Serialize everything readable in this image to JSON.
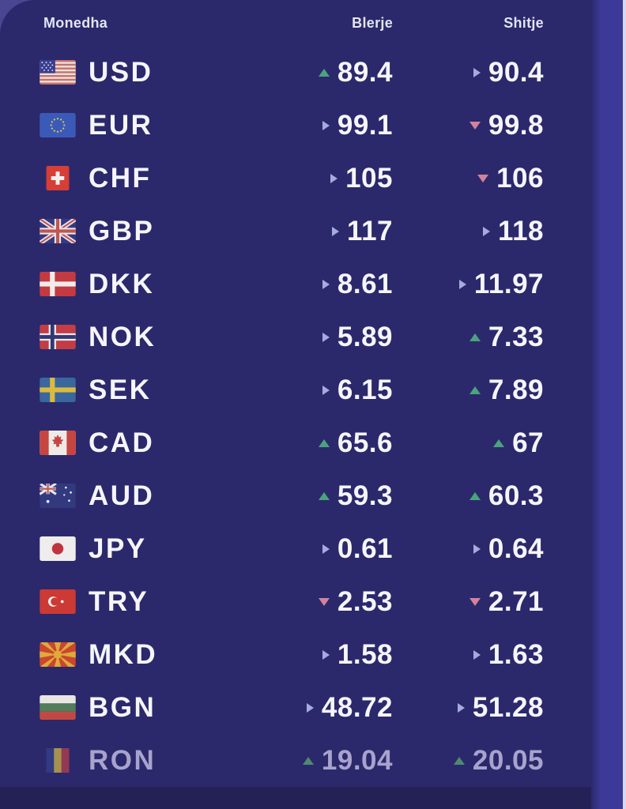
{
  "colors": {
    "background": "#2b296b",
    "panel_bottom": "#232156",
    "side_strip": "#3c3998",
    "side_sliver": "#d9d7ec",
    "corner_glow": "#4a4692",
    "header_text": "#e4e4f4",
    "value_text": "#f5f5fb",
    "muted_text": "#a7a3cd",
    "trend_up": "#4aa37d",
    "trend_down": "#d2839b",
    "trend_flat": "#a6abdf"
  },
  "table": {
    "headers": {
      "currency": "Monedha",
      "buy": "Blerje",
      "sell": "Shitje"
    },
    "rows": [
      {
        "code": "USD",
        "flag": "us",
        "buy": {
          "value": "89.4",
          "trend": "up"
        },
        "sell": {
          "value": "90.4",
          "trend": "flat"
        }
      },
      {
        "code": "EUR",
        "flag": "eu",
        "buy": {
          "value": "99.1",
          "trend": "flat"
        },
        "sell": {
          "value": "99.8",
          "trend": "down"
        }
      },
      {
        "code": "CHF",
        "flag": "ch",
        "buy": {
          "value": "105",
          "trend": "flat"
        },
        "sell": {
          "value": "106",
          "trend": "down"
        }
      },
      {
        "code": "GBP",
        "flag": "gb",
        "buy": {
          "value": "117",
          "trend": "flat"
        },
        "sell": {
          "value": "118",
          "trend": "flat"
        }
      },
      {
        "code": "DKK",
        "flag": "dk",
        "buy": {
          "value": "8.61",
          "trend": "flat"
        },
        "sell": {
          "value": "11.97",
          "trend": "flat"
        }
      },
      {
        "code": "NOK",
        "flag": "no",
        "buy": {
          "value": "5.89",
          "trend": "flat"
        },
        "sell": {
          "value": "7.33",
          "trend": "up"
        }
      },
      {
        "code": "SEK",
        "flag": "se",
        "buy": {
          "value": "6.15",
          "trend": "flat"
        },
        "sell": {
          "value": "7.89",
          "trend": "up"
        }
      },
      {
        "code": "CAD",
        "flag": "ca",
        "buy": {
          "value": "65.6",
          "trend": "up"
        },
        "sell": {
          "value": "67",
          "trend": "up"
        }
      },
      {
        "code": "AUD",
        "flag": "au",
        "buy": {
          "value": "59.3",
          "trend": "up"
        },
        "sell": {
          "value": "60.3",
          "trend": "up"
        }
      },
      {
        "code": "JPY",
        "flag": "jp",
        "buy": {
          "value": "0.61",
          "trend": "flat"
        },
        "sell": {
          "value": "0.64",
          "trend": "flat"
        }
      },
      {
        "code": "TRY",
        "flag": "tr",
        "buy": {
          "value": "2.53",
          "trend": "down"
        },
        "sell": {
          "value": "2.71",
          "trend": "down"
        }
      },
      {
        "code": "MKD",
        "flag": "mk",
        "buy": {
          "value": "1.58",
          "trend": "flat"
        },
        "sell": {
          "value": "1.63",
          "trend": "flat"
        }
      },
      {
        "code": "BGN",
        "flag": "bg",
        "buy": {
          "value": "48.72",
          "trend": "flat"
        },
        "sell": {
          "value": "51.28",
          "trend": "flat"
        }
      },
      {
        "code": "RON",
        "flag": "ro",
        "muted": true,
        "buy": {
          "value": "19.04",
          "trend": "up"
        },
        "sell": {
          "value": "20.05",
          "trend": "up"
        }
      }
    ]
  }
}
